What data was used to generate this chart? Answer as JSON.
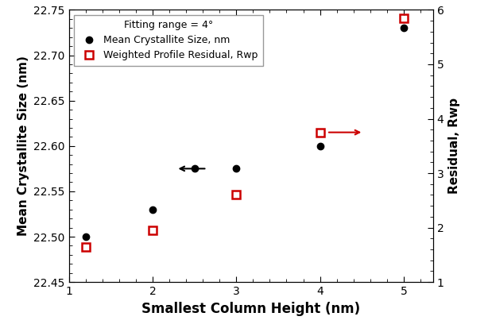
{
  "black_x": [
    1.2,
    2.0,
    2.5,
    3.0,
    4.0,
    5.0
  ],
  "black_y": [
    22.5,
    22.53,
    22.575,
    22.575,
    22.6,
    22.73
  ],
  "red_x": [
    1.2,
    2.0,
    3.0,
    4.0,
    5.0
  ],
  "red_y": [
    1.65,
    1.95,
    2.6,
    3.75,
    5.85
  ],
  "xlim": [
    1.0,
    5.35
  ],
  "ylim_left": [
    22.45,
    22.75
  ],
  "ylim_right": [
    1.0,
    6.0
  ],
  "xlabel": "Smallest Column Height (nm)",
  "ylabel_left": "Mean Crystallite Size (nm)",
  "ylabel_right": "Residual, Rwp",
  "legend_title": "Fitting range = 4°",
  "legend_label_black": "Mean Crystallite Size, nm",
  "legend_label_red": "Weighted Profile Residual, Rwp",
  "black_color": "#000000",
  "red_color": "#cc0000",
  "background_color": "#ffffff",
  "xlabel_fontsize": 12,
  "ylabel_fontsize": 11,
  "tick_fontsize": 10,
  "legend_fontsize": 9,
  "legend_title_fontsize": 9
}
